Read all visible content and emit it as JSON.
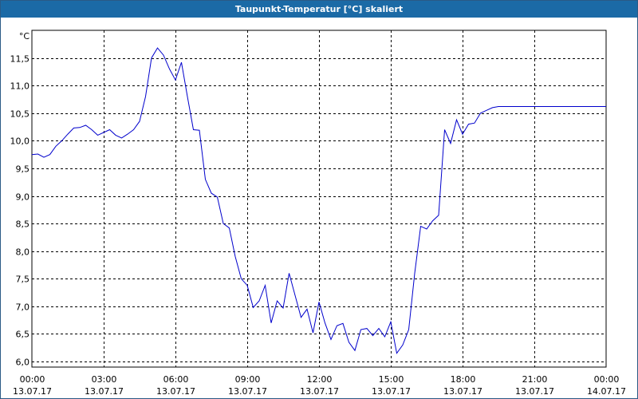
{
  "window": {
    "title": "Taupunkt-Temperatur [°C] skaliert"
  },
  "chart_data": {
    "type": "line",
    "title": "Taupunkt-Temperatur [°C] skaliert",
    "unit_label": "°C",
    "xlabel": "",
    "ylabel": "",
    "x_range_hours": [
      0,
      24
    ],
    "ylim": [
      5.9,
      12.0
    ],
    "grid": true,
    "y_ticks": [
      "11,5",
      "11,0",
      "10,5",
      "10,0",
      "9,5",
      "9,0",
      "8,5",
      "8,0",
      "7,5",
      "7,0",
      "6,5",
      "6,0"
    ],
    "y_tick_values": [
      11.5,
      11.0,
      10.5,
      10.0,
      9.5,
      9.0,
      8.5,
      8.0,
      7.5,
      7.0,
      6.5,
      6.0
    ],
    "x_ticks": [
      {
        "time": "00:00",
        "date": "13.07.17"
      },
      {
        "time": "03:00",
        "date": "13.07.17"
      },
      {
        "time": "06:00",
        "date": "13.07.17"
      },
      {
        "time": "09:00",
        "date": "13.07.17"
      },
      {
        "time": "12:00",
        "date": "13.07.17"
      },
      {
        "time": "15:00",
        "date": "13.07.17"
      },
      {
        "time": "18:00",
        "date": "13.07.17"
      },
      {
        "time": "21:00",
        "date": "13.07.17"
      },
      {
        "time": "00:00",
        "date": "14.07.17"
      }
    ],
    "series": [
      {
        "color": "#0000cc",
        "x": [
          0,
          0.25,
          0.5,
          0.75,
          1.0,
          1.25,
          1.5,
          1.75,
          2.0,
          2.25,
          2.5,
          2.75,
          3.0,
          3.25,
          3.5,
          3.75,
          4.0,
          4.25,
          4.5,
          4.75,
          5.0,
          5.25,
          5.5,
          5.75,
          6.0,
          6.25,
          6.5,
          6.75,
          7.0,
          7.25,
          7.5,
          7.75,
          8.0,
          8.25,
          8.5,
          8.75,
          9.0,
          9.25,
          9.5,
          9.75,
          10.0,
          10.25,
          10.5,
          10.75,
          11.0,
          11.25,
          11.5,
          11.75,
          12.0,
          12.25,
          12.5,
          12.75,
          13.0,
          13.25,
          13.5,
          13.75,
          14.0,
          14.25,
          14.5,
          14.75,
          15.0,
          15.25,
          15.5,
          15.75,
          16.0,
          16.25,
          16.5,
          16.75,
          17.0,
          17.25,
          17.5,
          17.75,
          18.0,
          18.25,
          18.5,
          18.75,
          19.0,
          19.25,
          19.5,
          19.75,
          20.0,
          20.25,
          20.5,
          20.75,
          21.0,
          21.25,
          21.5,
          21.75,
          22.0,
          22.25,
          22.5,
          22.75,
          23.0,
          23.25,
          23.5,
          23.75,
          24.0
        ],
        "values": [
          9.75,
          9.76,
          9.7,
          9.75,
          9.9,
          10.0,
          10.12,
          10.23,
          10.24,
          10.28,
          10.2,
          10.1,
          10.15,
          10.2,
          10.1,
          10.05,
          10.12,
          10.2,
          10.35,
          10.8,
          11.5,
          11.68,
          11.55,
          11.3,
          11.1,
          11.42,
          10.8,
          10.2,
          10.19,
          9.3,
          9.05,
          8.98,
          8.5,
          8.42,
          7.9,
          7.5,
          7.38,
          6.98,
          7.1,
          7.38,
          6.7,
          7.1,
          6.97,
          7.6,
          7.2,
          6.8,
          6.95,
          6.52,
          7.08,
          6.7,
          6.4,
          6.65,
          6.69,
          6.35,
          6.2,
          6.58,
          6.6,
          6.47,
          6.6,
          6.45,
          6.72,
          6.15,
          6.3,
          6.58,
          7.6,
          8.45,
          8.4,
          8.55,
          8.65,
          10.2,
          9.95,
          10.38,
          10.12,
          10.3,
          10.32,
          10.5,
          10.55,
          10.6,
          10.62,
          10.62,
          10.62,
          10.62,
          10.62,
          10.62,
          10.62,
          10.62,
          10.62,
          10.62,
          10.62,
          10.62,
          10.62,
          10.62,
          10.62,
          10.62,
          10.62,
          10.62,
          10.62
        ]
      }
    ]
  }
}
